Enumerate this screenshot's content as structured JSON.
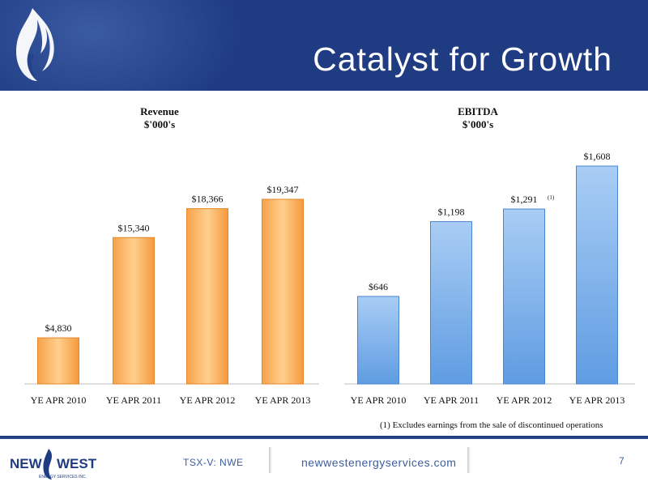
{
  "header": {
    "title": "Catalyst for Growth"
  },
  "chart_data": [
    {
      "type": "bar",
      "title": "Revenue",
      "subtitle": "$'000's",
      "categories": [
        "YE APR 2010",
        "YE APR 2011",
        "YE APR 2012",
        "YE APR 2013"
      ],
      "values": [
        4830,
        15340,
        18366,
        19347
      ],
      "labels": [
        "$4,830",
        "$15,340",
        "$18,366",
        "$19,347"
      ],
      "ylim": [
        0,
        23000
      ],
      "color": "#f8a94a"
    },
    {
      "type": "bar",
      "title": "EBITDA",
      "subtitle": "$'000's",
      "categories": [
        "YE APR 2010",
        "YE APR 2011",
        "YE APR 2012",
        "YE APR 2013"
      ],
      "values": [
        646,
        1198,
        1291,
        1608
      ],
      "labels": [
        "$646",
        "$1,198",
        "$1,291",
        "$1,608"
      ],
      "annotations": [
        "",
        "",
        "(1)",
        ""
      ],
      "ylim": [
        0,
        1620
      ],
      "color": "#6aa6e6"
    }
  ],
  "footnote": "(1) Excludes earnings from the sale of discontinued operations",
  "footer": {
    "logo_text": "NEW WEST",
    "logo_subtext": "ENERGY SERVICES INC.",
    "ticker": "TSX-V: NWE",
    "url": "newwestenergyservices.com",
    "page_number": "7"
  }
}
